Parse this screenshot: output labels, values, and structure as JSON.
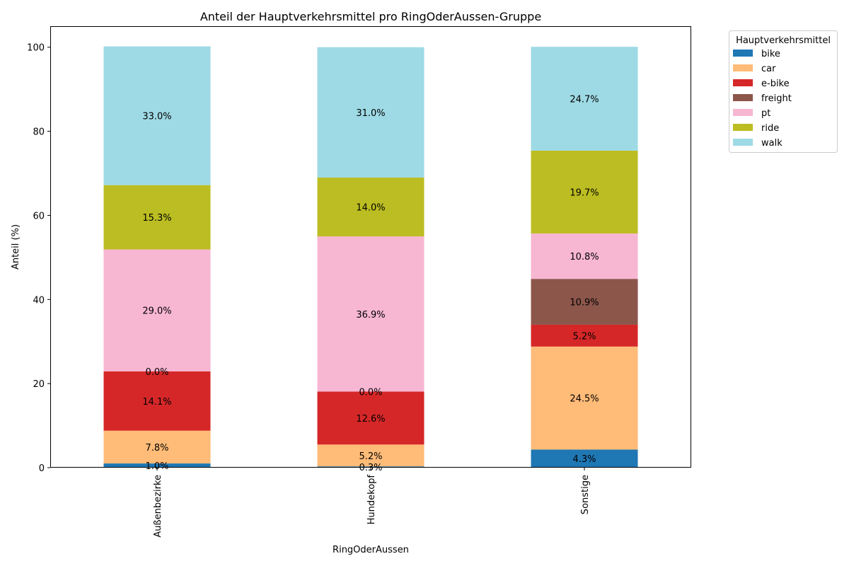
{
  "chart_data": {
    "type": "bar",
    "stacked": true,
    "title": "Anteil der Hauptverkehrsmittel pro RingOderAussen-Gruppe",
    "xlabel": "RingOderAussen",
    "ylabel": "Anteil (%)",
    "ylim": [
      0,
      105
    ],
    "yticks": [
      0,
      20,
      40,
      60,
      80,
      100
    ],
    "categories": [
      "Außenbezirke",
      "Hundekopf",
      "Sonstige"
    ],
    "legend_title": "Hauptverkehrsmittel",
    "legend_placement": "outside-top-right",
    "grid": false,
    "series": [
      {
        "name": "bike",
        "color": "#1f77b4",
        "values": [
          1.0,
          0.3,
          4.3
        ],
        "labels": [
          "1.0%",
          "0.3%",
          "4.3%"
        ]
      },
      {
        "name": "car",
        "color": "#ffbb78",
        "values": [
          7.8,
          5.2,
          24.5
        ],
        "labels": [
          "7.8%",
          "5.2%",
          "24.5%"
        ]
      },
      {
        "name": "e-bike",
        "color": "#d62728",
        "values": [
          14.1,
          12.6,
          5.2
        ],
        "labels": [
          "14.1%",
          "12.6%",
          "5.2%"
        ]
      },
      {
        "name": "freight",
        "color": "#8c564b",
        "values": [
          0.0,
          0.0,
          10.9
        ],
        "labels": [
          "0.0%",
          "0.0%",
          "10.9%"
        ]
      },
      {
        "name": "pt",
        "color": "#f7b6d2",
        "values": [
          29.0,
          36.9,
          10.8
        ],
        "labels": [
          "29.0%",
          "36.9%",
          "10.8%"
        ]
      },
      {
        "name": "ride",
        "color": "#bcbd22",
        "values": [
          15.3,
          14.0,
          19.7
        ],
        "labels": [
          "15.3%",
          "14.0%",
          "19.7%"
        ]
      },
      {
        "name": "walk",
        "color": "#9edae5",
        "values": [
          33.0,
          31.0,
          24.7
        ],
        "labels": [
          "33.0%",
          "31.0%",
          "24.7%"
        ]
      }
    ]
  }
}
